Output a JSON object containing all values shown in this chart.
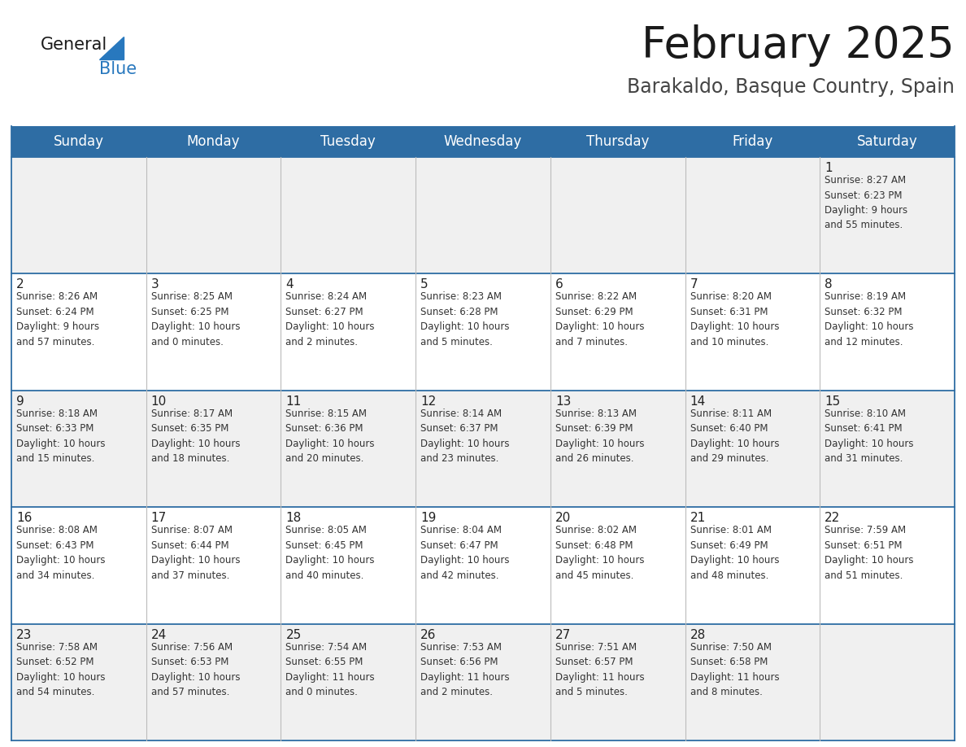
{
  "title": "February 2025",
  "subtitle": "Barakaldo, Basque Country, Spain",
  "header_bg": "#2E6DA4",
  "header_text": "#FFFFFF",
  "cell_bg_row0": "#F0F0F0",
  "cell_bg_row1": "#FFFFFF",
  "cell_bg_row2": "#F0F0F0",
  "cell_bg_row3": "#FFFFFF",
  "cell_bg_row4": "#F0F0F0",
  "day_headers": [
    "Sunday",
    "Monday",
    "Tuesday",
    "Wednesday",
    "Thursday",
    "Friday",
    "Saturday"
  ],
  "weeks": [
    [
      {
        "day": "",
        "info": ""
      },
      {
        "day": "",
        "info": ""
      },
      {
        "day": "",
        "info": ""
      },
      {
        "day": "",
        "info": ""
      },
      {
        "day": "",
        "info": ""
      },
      {
        "day": "",
        "info": ""
      },
      {
        "day": "1",
        "info": "Sunrise: 8:27 AM\nSunset: 6:23 PM\nDaylight: 9 hours\nand 55 minutes."
      }
    ],
    [
      {
        "day": "2",
        "info": "Sunrise: 8:26 AM\nSunset: 6:24 PM\nDaylight: 9 hours\nand 57 minutes."
      },
      {
        "day": "3",
        "info": "Sunrise: 8:25 AM\nSunset: 6:25 PM\nDaylight: 10 hours\nand 0 minutes."
      },
      {
        "day": "4",
        "info": "Sunrise: 8:24 AM\nSunset: 6:27 PM\nDaylight: 10 hours\nand 2 minutes."
      },
      {
        "day": "5",
        "info": "Sunrise: 8:23 AM\nSunset: 6:28 PM\nDaylight: 10 hours\nand 5 minutes."
      },
      {
        "day": "6",
        "info": "Sunrise: 8:22 AM\nSunset: 6:29 PM\nDaylight: 10 hours\nand 7 minutes."
      },
      {
        "day": "7",
        "info": "Sunrise: 8:20 AM\nSunset: 6:31 PM\nDaylight: 10 hours\nand 10 minutes."
      },
      {
        "day": "8",
        "info": "Sunrise: 8:19 AM\nSunset: 6:32 PM\nDaylight: 10 hours\nand 12 minutes."
      }
    ],
    [
      {
        "day": "9",
        "info": "Sunrise: 8:18 AM\nSunset: 6:33 PM\nDaylight: 10 hours\nand 15 minutes."
      },
      {
        "day": "10",
        "info": "Sunrise: 8:17 AM\nSunset: 6:35 PM\nDaylight: 10 hours\nand 18 minutes."
      },
      {
        "day": "11",
        "info": "Sunrise: 8:15 AM\nSunset: 6:36 PM\nDaylight: 10 hours\nand 20 minutes."
      },
      {
        "day": "12",
        "info": "Sunrise: 8:14 AM\nSunset: 6:37 PM\nDaylight: 10 hours\nand 23 minutes."
      },
      {
        "day": "13",
        "info": "Sunrise: 8:13 AM\nSunset: 6:39 PM\nDaylight: 10 hours\nand 26 minutes."
      },
      {
        "day": "14",
        "info": "Sunrise: 8:11 AM\nSunset: 6:40 PM\nDaylight: 10 hours\nand 29 minutes."
      },
      {
        "day": "15",
        "info": "Sunrise: 8:10 AM\nSunset: 6:41 PM\nDaylight: 10 hours\nand 31 minutes."
      }
    ],
    [
      {
        "day": "16",
        "info": "Sunrise: 8:08 AM\nSunset: 6:43 PM\nDaylight: 10 hours\nand 34 minutes."
      },
      {
        "day": "17",
        "info": "Sunrise: 8:07 AM\nSunset: 6:44 PM\nDaylight: 10 hours\nand 37 minutes."
      },
      {
        "day": "18",
        "info": "Sunrise: 8:05 AM\nSunset: 6:45 PM\nDaylight: 10 hours\nand 40 minutes."
      },
      {
        "day": "19",
        "info": "Sunrise: 8:04 AM\nSunset: 6:47 PM\nDaylight: 10 hours\nand 42 minutes."
      },
      {
        "day": "20",
        "info": "Sunrise: 8:02 AM\nSunset: 6:48 PM\nDaylight: 10 hours\nand 45 minutes."
      },
      {
        "day": "21",
        "info": "Sunrise: 8:01 AM\nSunset: 6:49 PM\nDaylight: 10 hours\nand 48 minutes."
      },
      {
        "day": "22",
        "info": "Sunrise: 7:59 AM\nSunset: 6:51 PM\nDaylight: 10 hours\nand 51 minutes."
      }
    ],
    [
      {
        "day": "23",
        "info": "Sunrise: 7:58 AM\nSunset: 6:52 PM\nDaylight: 10 hours\nand 54 minutes."
      },
      {
        "day": "24",
        "info": "Sunrise: 7:56 AM\nSunset: 6:53 PM\nDaylight: 10 hours\nand 57 minutes."
      },
      {
        "day": "25",
        "info": "Sunrise: 7:54 AM\nSunset: 6:55 PM\nDaylight: 11 hours\nand 0 minutes."
      },
      {
        "day": "26",
        "info": "Sunrise: 7:53 AM\nSunset: 6:56 PM\nDaylight: 11 hours\nand 2 minutes."
      },
      {
        "day": "27",
        "info": "Sunrise: 7:51 AM\nSunset: 6:57 PM\nDaylight: 11 hours\nand 5 minutes."
      },
      {
        "day": "28",
        "info": "Sunrise: 7:50 AM\nSunset: 6:58 PM\nDaylight: 11 hours\nand 8 minutes."
      },
      {
        "day": "",
        "info": ""
      }
    ]
  ],
  "title_fontsize": 38,
  "subtitle_fontsize": 17,
  "header_fontsize": 12,
  "day_number_fontsize": 11,
  "info_fontsize": 8.5,
  "logo_general_fontsize": 15,
  "logo_blue_fontsize": 15,
  "header_text_color": "#FFFFFF",
  "border_line_color": "#2E6DA4",
  "grid_line_color": "#BBBBBB",
  "day_number_color": "#222222",
  "info_text_color": "#333333",
  "title_color": "#1a1a1a",
  "subtitle_color": "#444444",
  "logo_general_color": "#1a1a1a",
  "logo_blue_color": "#2878BE",
  "logo_triangle_color": "#2878BE"
}
